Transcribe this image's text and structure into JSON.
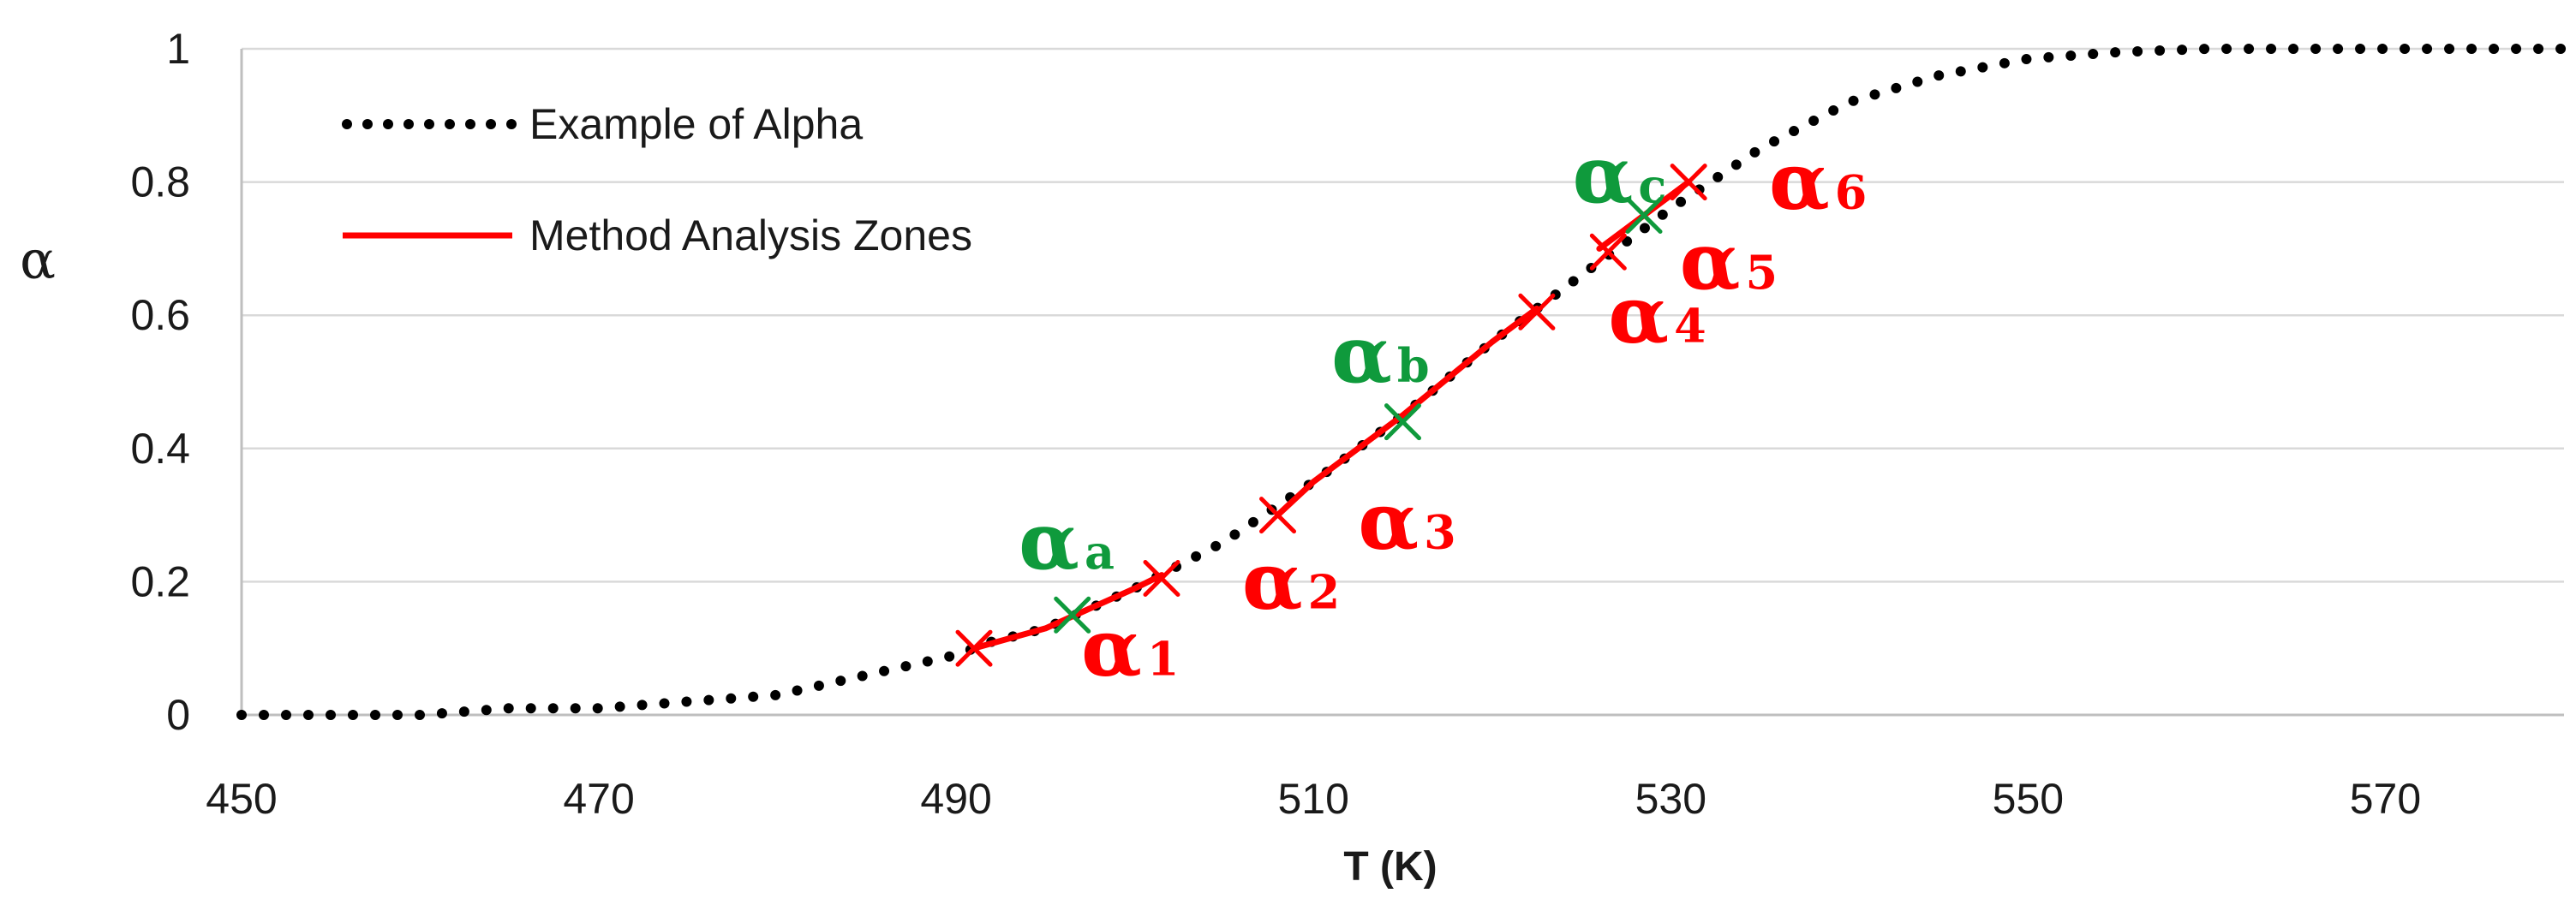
{
  "chart_data": {
    "type": "line",
    "title": "",
    "xlabel": "T (K)",
    "ylabel": "α",
    "xlim": [
      450,
      580
    ],
    "ylim": [
      0,
      1
    ],
    "xticks": [
      450,
      470,
      490,
      510,
      530,
      550,
      570
    ],
    "xtick_labels": [
      "450",
      "470",
      "490",
      "510",
      "530",
      "550",
      "570"
    ],
    "yticks": [
      0,
      0.2,
      0.4,
      0.6,
      0.8,
      1
    ],
    "ytick_labels": [
      "0",
      "0.2",
      "0.4",
      "0.6",
      "0.8",
      "1"
    ],
    "grid": "horizontal",
    "legend_position": "top-left",
    "series": [
      {
        "name": "Example of Alpha",
        "style": "dotted",
        "color": "#000000",
        "x": [
          450,
          455,
          460,
          465,
          470,
          475,
          480,
          485,
          490,
          492,
          495,
          500,
          505,
          510,
          515,
          520,
          525,
          530,
          535,
          540,
          545,
          550,
          555,
          560,
          565,
          570,
          575,
          580
        ],
        "y": [
          0.0,
          0.0,
          0.0,
          0.01,
          0.01,
          0.02,
          0.03,
          0.06,
          0.09,
          0.11,
          0.13,
          0.19,
          0.26,
          0.35,
          0.45,
          0.56,
          0.66,
          0.76,
          0.85,
          0.92,
          0.96,
          0.985,
          0.995,
          1.0,
          1.0,
          1.0,
          1.0,
          1.0
        ]
      },
      {
        "name": "Method Analysis Zones",
        "style": "solid",
        "color": "#ff0000",
        "segments": [
          {
            "x": [
              491,
              495,
              500,
              501.5
            ],
            "y": [
              0.1,
              0.13,
              0.19,
              0.21
            ]
          },
          {
            "x": [
              508,
              510,
              515,
              520,
              522.5
            ],
            "y": [
              0.3,
              0.35,
              0.45,
              0.56,
              0.61
            ]
          },
          {
            "x": [
              526,
              528,
              531
            ],
            "y": [
              0.7,
              0.74,
              0.8
            ]
          }
        ]
      }
    ],
    "annotations": [
      {
        "id": "alpha-1",
        "base": "α",
        "sub": "1",
        "color": "#ff0000",
        "x": 491,
        "y": 0.1,
        "label_x": 497,
        "label_y": 0.06
      },
      {
        "id": "alpha-2",
        "base": "α",
        "sub": "2",
        "color": "#ff0000",
        "x": 501.5,
        "y": 0.205,
        "label_x": 506,
        "label_y": 0.16
      },
      {
        "id": "alpha-3",
        "base": "α",
        "sub": "3",
        "color": "#ff0000",
        "x": 508,
        "y": 0.3,
        "label_x": 512.5,
        "label_y": 0.25
      },
      {
        "id": "alpha-4",
        "base": "α",
        "sub": "4",
        "color": "#ff0000",
        "x": 522.5,
        "y": 0.605,
        "label_x": 526.5,
        "label_y": 0.56
      },
      {
        "id": "alpha-5",
        "base": "α",
        "sub": "5",
        "color": "#ff0000",
        "x": 526.5,
        "y": 0.695,
        "label_x": 530.5,
        "label_y": 0.64
      },
      {
        "id": "alpha-6",
        "base": "α",
        "sub": "6",
        "color": "#ff0000",
        "x": 531,
        "y": 0.8,
        "label_x": 535.5,
        "label_y": 0.76
      },
      {
        "id": "alpha-a",
        "base": "α",
        "sub": "a",
        "color": "#0f9a3c",
        "x": 496.5,
        "y": 0.15,
        "label_x": 493.5,
        "label_y": 0.22
      },
      {
        "id": "alpha-b",
        "base": "α",
        "sub": "b",
        "color": "#0f9a3c",
        "x": 515,
        "y": 0.44,
        "label_x": 511,
        "label_y": 0.5
      },
      {
        "id": "alpha-c",
        "base": "α",
        "sub": "c",
        "color": "#0f9a3c",
        "x": 528.5,
        "y": 0.75,
        "label_x": 524.5,
        "label_y": 0.77
      }
    ],
    "colors": {
      "red": "#ff0000",
      "green": "#0f9a3c",
      "grid": "#d9d9d9",
      "axis": "#bfbfbf"
    }
  }
}
